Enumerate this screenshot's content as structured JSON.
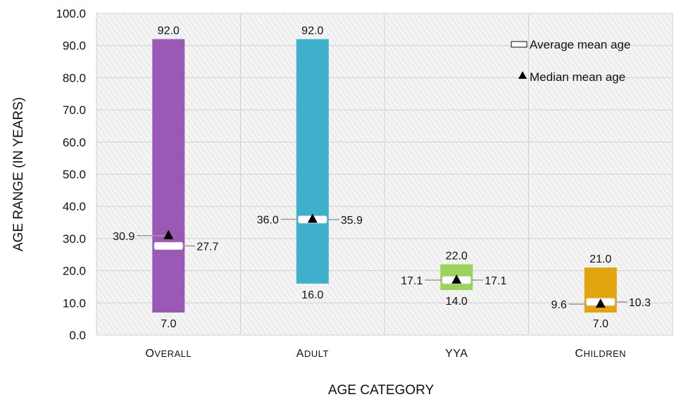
{
  "chart_data": {
    "type": "bar",
    "subtype": "floating-range",
    "xlabel": "AGE CATEGORY",
    "ylabel": "AGE RANGE (IN YEARS)",
    "ylim": [
      0,
      100
    ],
    "yticks": [
      "0.0",
      "10.0",
      "20.0",
      "30.0",
      "40.0",
      "50.0",
      "60.0",
      "70.0",
      "80.0",
      "90.0",
      "100.0"
    ],
    "grid": true,
    "legend_position": "top-right",
    "legend": {
      "average": "Average mean age",
      "median": "Median mean age"
    },
    "categories": [
      "Overall",
      "Adult",
      "YYA",
      "Children"
    ],
    "category_labels": [
      {
        "first": "O",
        "rest": "VERALL"
      },
      {
        "first": "A",
        "rest": "DULT"
      },
      {
        "first": "YYA",
        "rest": ""
      },
      {
        "first": "C",
        "rest": "HILDREN"
      }
    ],
    "min": [
      7.0,
      16.0,
      14.0,
      7.0
    ],
    "max": [
      92.0,
      92.0,
      22.0,
      21.0
    ],
    "average_mean_age": [
      27.7,
      35.9,
      17.1,
      10.3
    ],
    "median_mean_age": [
      30.9,
      36.0,
      17.1,
      9.6
    ],
    "labels": {
      "min": [
        "7.0",
        "16.0",
        "14.0",
        "7.0"
      ],
      "max": [
        "92.0",
        "92.0",
        "22.0",
        "21.0"
      ],
      "average": [
        "27.7",
        "35.9",
        "17.1",
        "10.3"
      ],
      "median": [
        "30.9",
        "36.0",
        "17.1",
        "9.6"
      ]
    },
    "colors": [
      "#9b59b6",
      "#3fb0cc",
      "#9bd45a",
      "#e2a50f"
    ]
  }
}
